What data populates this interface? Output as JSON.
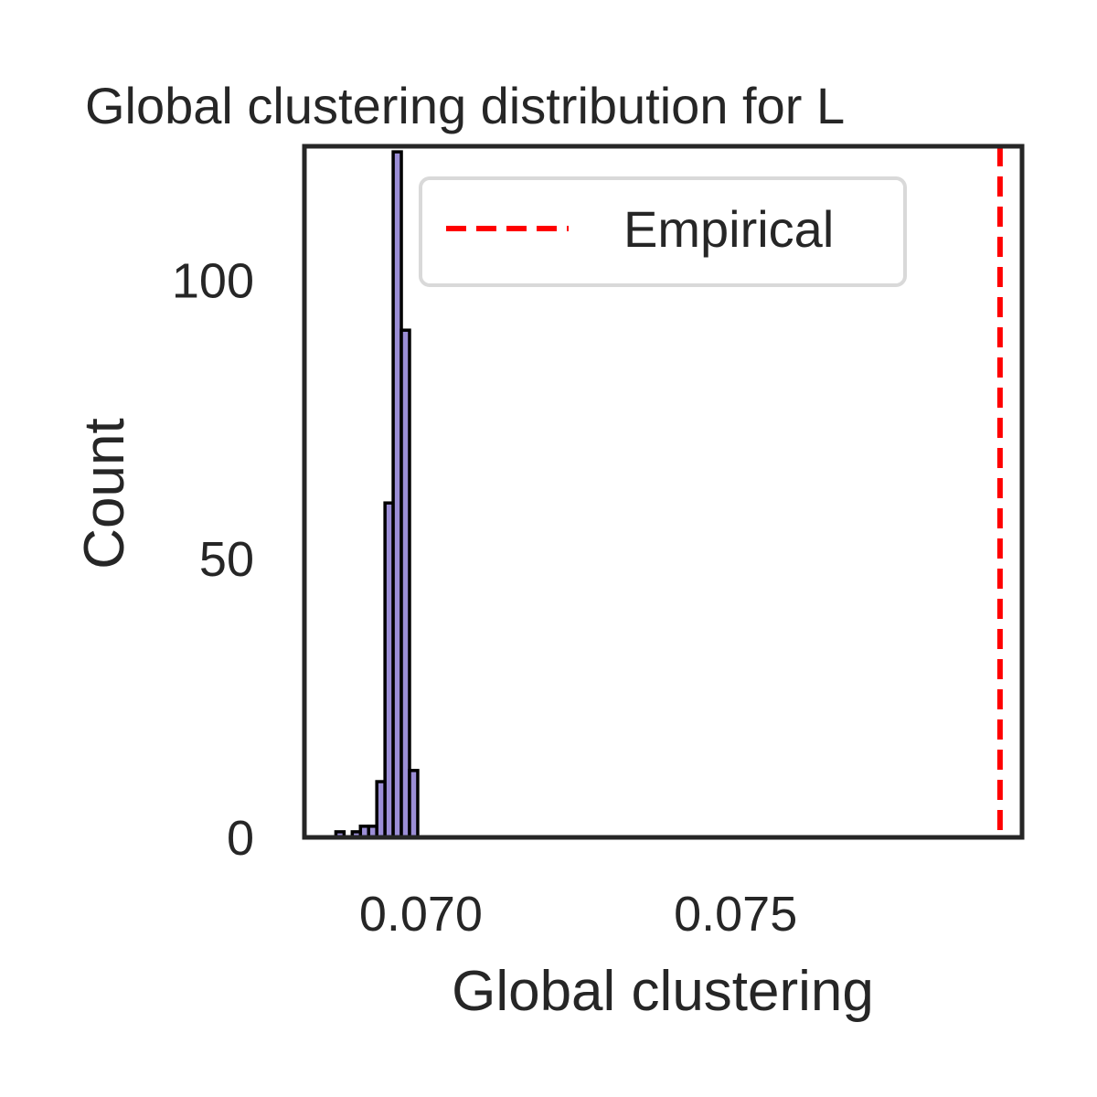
{
  "chart_data": {
    "type": "bar",
    "title": "Global clustering distribution for L",
    "xlabel": "Global clustering",
    "ylabel": "Count",
    "xlim": [
      0.06815,
      0.07955
    ],
    "ylim": [
      0,
      124
    ],
    "xticks": [
      0.07,
      0.075
    ],
    "xtick_labels": [
      "0.070",
      "0.075"
    ],
    "yticks": [
      0,
      50,
      100
    ],
    "ytick_labels": [
      "0",
      "50",
      "100"
    ],
    "grid": false,
    "bar_color": "#9b8ed6",
    "bar_edge_color": "#000000",
    "bins": [
      {
        "x0": 0.06865,
        "x1": 0.06878,
        "count": 1
      },
      {
        "x0": 0.06878,
        "x1": 0.06891,
        "count": 0
      },
      {
        "x0": 0.06891,
        "x1": 0.06904,
        "count": 1
      },
      {
        "x0": 0.06904,
        "x1": 0.06917,
        "count": 2
      },
      {
        "x0": 0.06917,
        "x1": 0.0693,
        "count": 2
      },
      {
        "x0": 0.0693,
        "x1": 0.06943,
        "count": 10
      },
      {
        "x0": 0.06943,
        "x1": 0.06956,
        "count": 60
      },
      {
        "x0": 0.06956,
        "x1": 0.06969,
        "count": 123
      },
      {
        "x0": 0.06969,
        "x1": 0.06982,
        "count": 91
      },
      {
        "x0": 0.06982,
        "x1": 0.06995,
        "count": 12
      }
    ],
    "empirical": {
      "label": "Empirical",
      "value": 0.0792,
      "color": "#ff0000",
      "style": "dashed"
    },
    "legend": {
      "location": "upper-center",
      "entries": [
        "Empirical"
      ]
    }
  }
}
